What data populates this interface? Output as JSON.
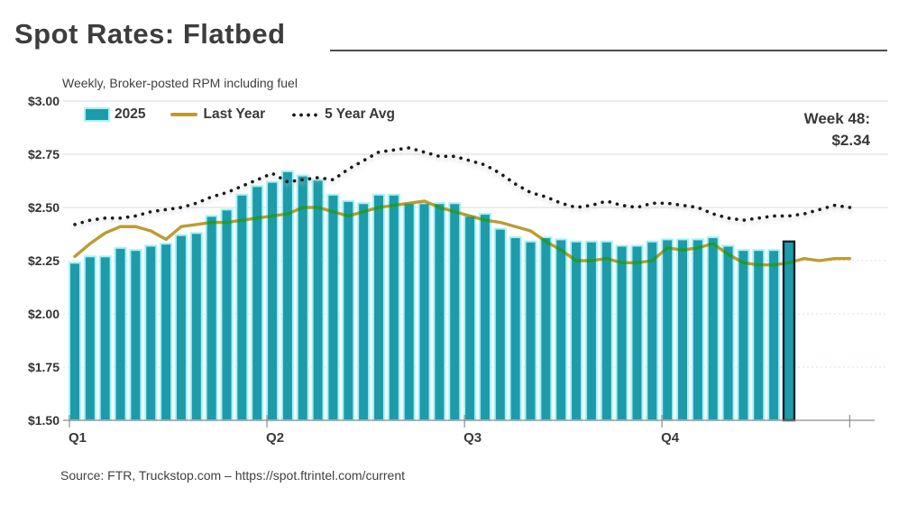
{
  "header": {
    "title": "Spot Rates: Flatbed",
    "subtitle": "Weekly, Broker-posted RPM including fuel"
  },
  "annotation": {
    "line1": "Week 48:",
    "line2": "$2.34"
  },
  "legend": {
    "items": [
      {
        "label": "2025",
        "swatch": "teal-bar"
      },
      {
        "label": "Last Year",
        "swatch": "gold-line"
      },
      {
        "label": "5 Year Avg",
        "swatch": "black-dotted-line"
      }
    ]
  },
  "source": "Source: FTR, Truckstop.com – https://spot.ftrintel.com/current",
  "colors": {
    "bar_fill": "#1e9baa",
    "bar_edge": "#a6f2f5",
    "highlight_edge": "#16242e",
    "last_year_line": "#be9b31",
    "five_year_dots": "#1a1a1a",
    "gridline": "#d9d9d9",
    "gridline_minor": "#cfe8e8",
    "axis": "#8c8c8c",
    "text": "#333333"
  },
  "chart_data": {
    "type": "combo",
    "title": "Spot Rates: Flatbed",
    "subtitle": "Weekly, Broker-posted RPM including fuel",
    "x_unit": "week",
    "weeks_total": 52,
    "bar_weeks": 48,
    "quarter_labels": [
      "Q1",
      "Q2",
      "Q3",
      "Q4"
    ],
    "quarter_start_weeks": [
      1,
      14,
      27,
      40
    ],
    "ylim": [
      1.5,
      3.0
    ],
    "ytick_step": 0.25,
    "yticks": [
      3.0,
      2.75,
      2.5,
      2.25,
      2.0,
      1.75,
      1.5
    ],
    "ytick_labels": [
      "$3.00",
      "$2.75",
      "$2.50",
      "$2.25",
      "$2.00",
      "$1.75",
      "$1.50"
    ],
    "grid": "horizontal",
    "legend_position": "top-left-inside",
    "highlight": {
      "week": 48,
      "value": 2.34,
      "label": "Week 48: $2.34"
    },
    "series": [
      {
        "name": "2025",
        "type": "bar",
        "values": [
          2.24,
          2.27,
          2.27,
          2.31,
          2.3,
          2.32,
          2.33,
          2.37,
          2.38,
          2.46,
          2.49,
          2.56,
          2.6,
          2.62,
          2.67,
          2.65,
          2.63,
          2.56,
          2.53,
          2.52,
          2.56,
          2.56,
          2.52,
          2.52,
          2.52,
          2.52,
          2.46,
          2.47,
          2.4,
          2.36,
          2.34,
          2.36,
          2.35,
          2.34,
          2.34,
          2.34,
          2.32,
          2.32,
          2.34,
          2.35,
          2.35,
          2.35,
          2.36,
          2.32,
          2.3,
          2.3,
          2.3,
          2.34
        ]
      },
      {
        "name": "Last Year",
        "type": "line",
        "values": [
          2.27,
          2.33,
          2.38,
          2.41,
          2.41,
          2.39,
          2.35,
          2.41,
          2.42,
          2.43,
          2.43,
          2.44,
          2.45,
          2.46,
          2.47,
          2.5,
          2.5,
          2.48,
          2.46,
          2.48,
          2.5,
          2.51,
          2.52,
          2.53,
          2.5,
          2.48,
          2.46,
          2.44,
          2.43,
          2.41,
          2.39,
          2.34,
          2.3,
          2.25,
          2.25,
          2.26,
          2.24,
          2.24,
          2.25,
          2.31,
          2.3,
          2.31,
          2.33,
          2.28,
          2.24,
          2.23,
          2.23,
          2.24,
          2.26,
          2.25,
          2.26,
          2.26
        ]
      },
      {
        "name": "5 Year Avg",
        "type": "dotted-line",
        "values": [
          2.42,
          2.44,
          2.45,
          2.45,
          2.46,
          2.48,
          2.49,
          2.5,
          2.52,
          2.55,
          2.57,
          2.6,
          2.63,
          2.66,
          2.62,
          2.63,
          2.64,
          2.63,
          2.68,
          2.72,
          2.76,
          2.77,
          2.78,
          2.76,
          2.74,
          2.74,
          2.72,
          2.7,
          2.66,
          2.61,
          2.57,
          2.55,
          2.52,
          2.5,
          2.51,
          2.53,
          2.51,
          2.5,
          2.52,
          2.52,
          2.51,
          2.5,
          2.47,
          2.45,
          2.44,
          2.45,
          2.46,
          2.46,
          2.47,
          2.49,
          2.51,
          2.5
        ]
      }
    ]
  }
}
